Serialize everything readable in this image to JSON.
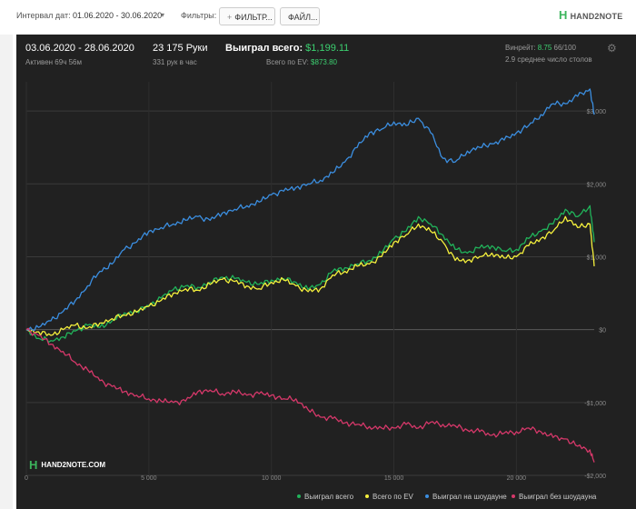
{
  "toolbar": {
    "interval_label": "Интервал дат:",
    "interval_value": "01.06.2020 - 30.06.2020",
    "filters_label": "Фильтры:",
    "filter_button": "ФИЛЬТР...",
    "file_button": "ФАЙЛ...",
    "logo": "HAND2NOTE"
  },
  "stats": {
    "period": "03.06.2020 - 28.06.2020",
    "active": "Активен 69ч 56м",
    "hands": "23 175 Руки",
    "hands_per_hour": "331 рук в час",
    "won_label": "Выиграл всего:",
    "won_value": "$1,199.11",
    "ev_label": "Всего по EV:",
    "ev_value": "$873.80",
    "winrate_label": "Винрейт:",
    "winrate_value": "8.75",
    "winrate_suffix": "66/100",
    "avg_tables": "2.9 среднее число столов"
  },
  "watermark": "HAND2NOTE.COM",
  "colors": {
    "total": "#21b35a",
    "ev": "#f5f03c",
    "showdown": "#3b8ee0",
    "nonshowdown": "#d6386a",
    "background": "#212121"
  },
  "chart_data": {
    "type": "line",
    "title": "",
    "xlabel": "",
    "ylabel": "",
    "xlim": [
      0,
      23175
    ],
    "ylim": [
      -2000,
      3400
    ],
    "x_ticks": [
      0,
      5000,
      10000,
      15000,
      20000
    ],
    "x_tick_labels": [
      "0",
      "5 000",
      "10 000",
      "15 000",
      "20 000"
    ],
    "y_ticks": [
      -2000,
      -1000,
      0,
      1000,
      2000,
      3000
    ],
    "y_tick_labels": [
      "-$2,000",
      "-$1,000",
      "$0",
      "$1,000",
      "$2,000",
      "$3,000"
    ],
    "grid": true,
    "legend_position": "bottom-right",
    "x": [
      0,
      500,
      1000,
      1500,
      2000,
      2500,
      3000,
      3500,
      4000,
      4500,
      5000,
      5500,
      6000,
      6500,
      7000,
      7500,
      8000,
      8500,
      9000,
      9500,
      10000,
      10500,
      11000,
      11500,
      12000,
      12500,
      13000,
      13500,
      14000,
      14500,
      15000,
      15500,
      16000,
      16500,
      17000,
      17500,
      18000,
      18500,
      19000,
      19500,
      20000,
      20500,
      21000,
      21500,
      22000,
      22500,
      23000,
      23175
    ],
    "series": [
      {
        "name": "Выиграл всего",
        "color": "#21b35a",
        "values": [
          0,
          -120,
          -150,
          -100,
          -20,
          60,
          30,
          120,
          230,
          250,
          330,
          430,
          550,
          600,
          580,
          650,
          720,
          700,
          650,
          620,
          680,
          700,
          650,
          550,
          620,
          800,
          850,
          900,
          950,
          1050,
          1250,
          1350,
          1550,
          1450,
          1300,
          1100,
          1050,
          1120,
          1150,
          1080,
          1100,
          1250,
          1350,
          1450,
          1650,
          1550,
          1700,
          1200
        ]
      },
      {
        "name": "Всего по EV",
        "color": "#f5f03c",
        "values": [
          0,
          -30,
          -80,
          0,
          60,
          20,
          90,
          150,
          200,
          240,
          320,
          400,
          500,
          560,
          540,
          620,
          690,
          660,
          600,
          560,
          650,
          680,
          600,
          520,
          560,
          750,
          800,
          870,
          900,
          1000,
          1200,
          1300,
          1450,
          1350,
          1200,
          950,
          950,
          1000,
          1050,
          980,
          1000,
          1150,
          1250,
          1350,
          1550,
          1400,
          1450,
          870
        ]
      },
      {
        "name": "Выиграл на шоудауне",
        "color": "#3b8ee0",
        "values": [
          0,
          30,
          120,
          250,
          400,
          600,
          800,
          900,
          1100,
          1200,
          1350,
          1400,
          1450,
          1500,
          1550,
          1500,
          1600,
          1650,
          1700,
          1750,
          1850,
          1900,
          1950,
          2000,
          2050,
          2150,
          2300,
          2500,
          2700,
          2750,
          2850,
          2800,
          2900,
          2700,
          2350,
          2300,
          2450,
          2500,
          2550,
          2600,
          2700,
          2800,
          2950,
          3100,
          3100,
          3200,
          3300,
          2950
        ]
      },
      {
        "name": "Выиграл без шоудауна",
        "color": "#d6386a",
        "values": [
          0,
          -80,
          -200,
          -300,
          -450,
          -550,
          -700,
          -780,
          -850,
          -900,
          -950,
          -980,
          -1000,
          -980,
          -850,
          -830,
          -880,
          -850,
          -900,
          -880,
          -900,
          -950,
          -950,
          -1100,
          -1200,
          -1220,
          -1280,
          -1300,
          -1330,
          -1350,
          -1350,
          -1300,
          -1350,
          -1270,
          -1300,
          -1320,
          -1380,
          -1400,
          -1450,
          -1420,
          -1400,
          -1350,
          -1400,
          -1480,
          -1500,
          -1600,
          -1650,
          -1820
        ]
      }
    ]
  }
}
